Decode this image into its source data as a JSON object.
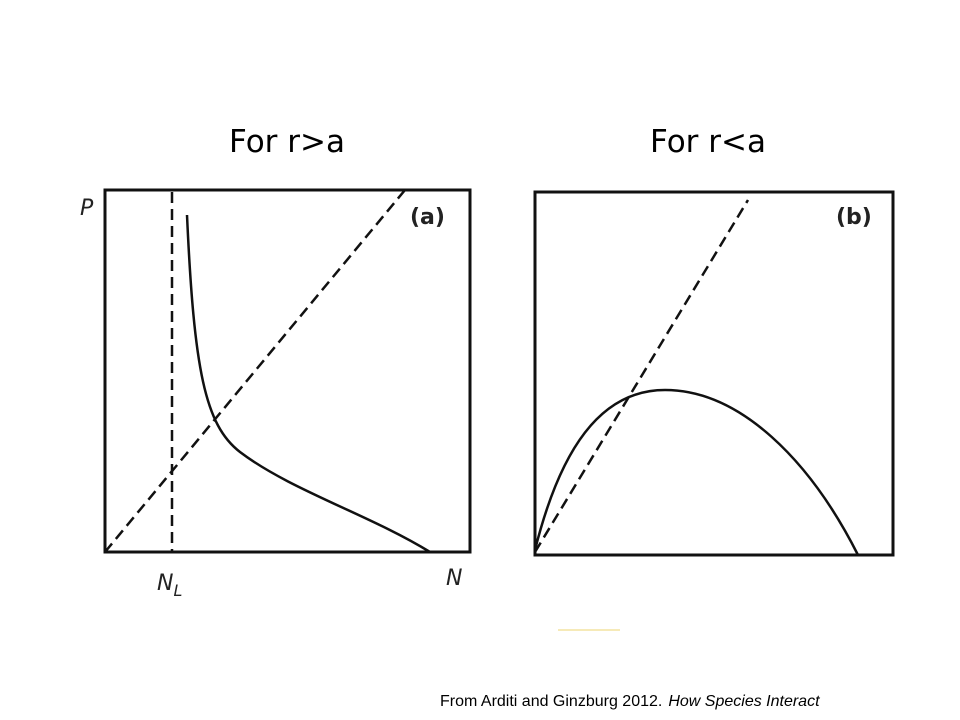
{
  "panels": [
    {
      "title": "For r>a",
      "label": "(a)",
      "y_axis": "P",
      "x_axis": "N",
      "marker": {
        "main": "N",
        "sub": "L"
      }
    },
    {
      "title": "For r<a",
      "label": "(b)"
    }
  ],
  "citation": {
    "text": "From Arditi and Ginzburg 2012.",
    "italic": "How Species Interact"
  }
}
